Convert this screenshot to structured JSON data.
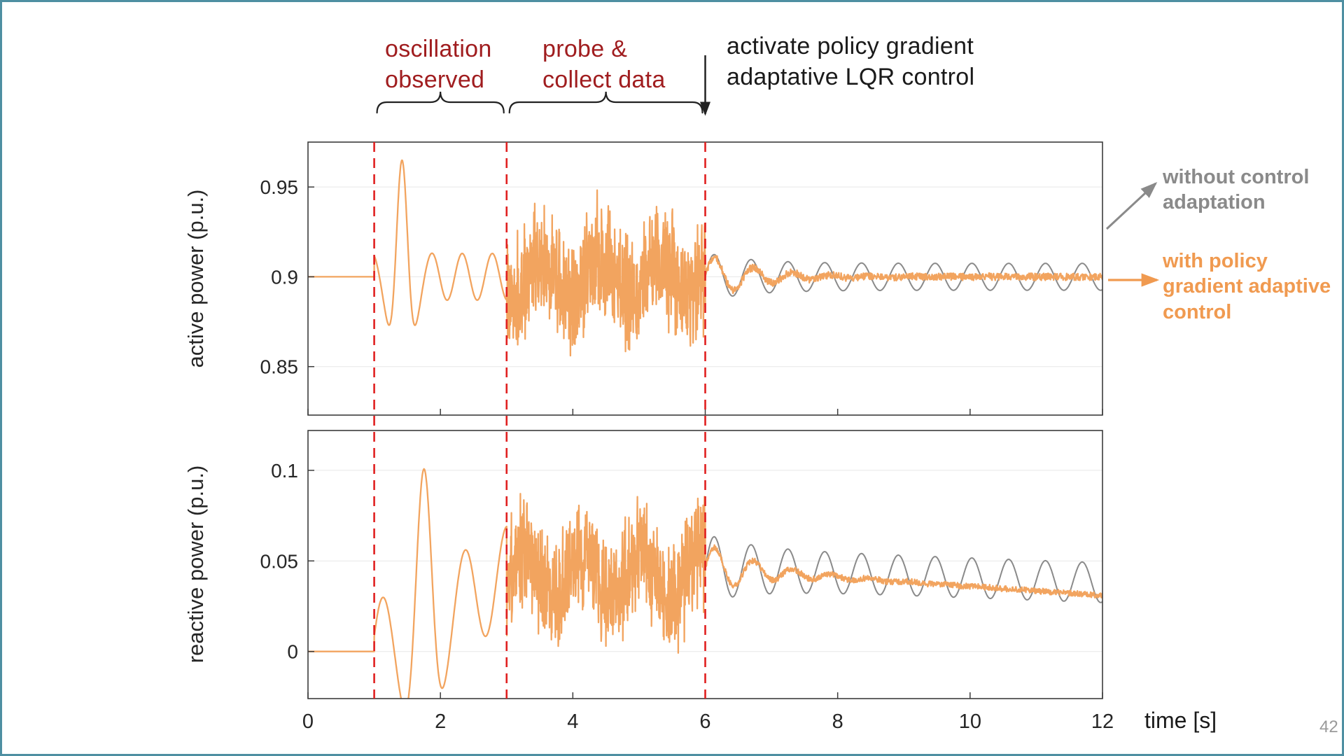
{
  "slide": {
    "page_number": "42",
    "border_color": "#4e8fa2",
    "background": "#ffffff"
  },
  "annotations": {
    "oscillation": {
      "lines": [
        "oscillation",
        "observed"
      ],
      "color": "#a01d1f"
    },
    "probe": {
      "lines": [
        "probe &",
        "collect data"
      ],
      "color": "#a01d1f"
    },
    "activate": {
      "lines": [
        "activate policy gradient",
        "adaptative LQR control"
      ],
      "color": "#1a1a1a"
    },
    "time_axis_label": "time [s]"
  },
  "legend": {
    "items": [
      {
        "label_lines": [
          "without control",
          "adaptation",
          ""
        ],
        "color": "#8a8a8a"
      },
      {
        "label_lines": [
          "with policy",
          "gradient adaptive",
          "control"
        ],
        "color": "#f09a50"
      }
    ]
  },
  "events": {
    "dashed_line_times": [
      1,
      3,
      6
    ],
    "dashed_color": "#e02020",
    "brace_spans": [
      [
        1,
        3
      ],
      [
        3,
        6
      ]
    ],
    "activate_time": 6
  },
  "chart_data": [
    {
      "type": "line",
      "ylabel": "active power (p.u.)",
      "xlabel": "",
      "xlim": [
        0,
        12
      ],
      "ylim": [
        0.823,
        0.975
      ],
      "xticks": [
        0,
        2,
        4,
        6,
        8,
        10,
        12
      ],
      "yticks": [
        0.85,
        0.9,
        0.95
      ],
      "grid": "horizontal",
      "series": [
        {
          "name": "without control adaptation",
          "color": "#8a8a8a",
          "width": 2,
          "segments": [
            {
              "kind": "steady",
              "t": [
                6,
                12
              ],
              "base_start": 0.9,
              "base_end": 0.9,
              "amp": 0.0075,
              "freq": 1.8,
              "transient_amp": 0.006,
              "decay": 1.5
            }
          ]
        },
        {
          "name": "with policy gradient adaptive control",
          "color": "#f2a45f",
          "width": 2.3,
          "segments": [
            {
              "kind": "const",
              "t": [
                0,
                1
              ],
              "value": 0.9
            },
            {
              "kind": "osc",
              "t": [
                1,
                3
              ],
              "base_start": 0.9,
              "base_end": 0.9,
              "freq": 2.2,
              "phase": 2.05,
              "peak_t": 1.42,
              "peak_amp": 0.052,
              "peak_width": 0.13,
              "tail_amp": 0.013
            },
            {
              "kind": "noise",
              "t": [
                3,
                6
              ],
              "base": 0.9,
              "amp": 0.042,
              "slow_amp": 0.01,
              "seed": 1
            },
            {
              "kind": "settle",
              "t": [
                6,
                12
              ],
              "base_start": 0.9,
              "base_end": 0.9,
              "transient_amp": 0.013,
              "freq": 1.7,
              "decay": 1.3,
              "noise": 0.002,
              "seed": 2
            }
          ]
        }
      ]
    },
    {
      "type": "line",
      "ylabel": "reactive power (p.u.)",
      "xlabel": "time [s]",
      "xlim": [
        0,
        12
      ],
      "ylim": [
        -0.026,
        0.122
      ],
      "xticks": [
        0,
        2,
        4,
        6,
        8,
        10,
        12
      ],
      "yticks": [
        0,
        0.05,
        0.1
      ],
      "grid": "horizontal",
      "series": [
        {
          "name": "without control adaptation",
          "color": "#8a8a8a",
          "width": 2,
          "segments": [
            {
              "kind": "steady",
              "t": [
                6,
                12
              ],
              "base_start": 0.046,
              "base_end": 0.038,
              "amp": 0.011,
              "freq": 1.8,
              "transient_amp": 0.008,
              "decay": 1.5
            }
          ]
        },
        {
          "name": "with policy gradient adaptive control",
          "color": "#f2a45f",
          "width": 2.3,
          "segments": [
            {
              "kind": "const",
              "t": [
                0,
                1
              ],
              "value": 0
            },
            {
              "kind": "osc",
              "t": [
                1,
                3
              ],
              "base_start": 0,
              "base_end": 0.042,
              "freq": 1.6,
              "phase": 0.31,
              "peak_t": 1.75,
              "peak_amp": 0.058,
              "peak_width": 0.18,
              "tail_amp": 0.027
            },
            {
              "kind": "noise",
              "t": [
                3,
                6
              ],
              "base": 0.042,
              "amp": 0.04,
              "slow_amp": 0.012,
              "seed": 3
            },
            {
              "kind": "settle",
              "t": [
                6,
                12
              ],
              "base_start": 0.046,
              "base_end": 0.031,
              "transient_amp": 0.014,
              "freq": 1.7,
              "decay": 1.2,
              "noise": 0.0016,
              "seed": 4
            }
          ]
        }
      ]
    }
  ]
}
